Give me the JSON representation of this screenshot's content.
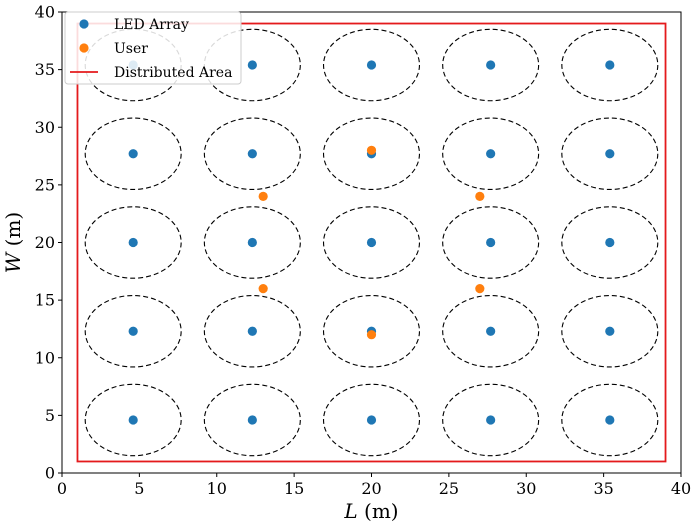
{
  "chart_data": {
    "type": "scatter",
    "title": "",
    "xlabel_var": "L",
    "xlabel_unit": "(m)",
    "ylabel_var": "W",
    "ylabel_unit": "(m)",
    "xlim": [
      0,
      40
    ],
    "ylim": [
      0,
      40
    ],
    "xticks": [
      0,
      5,
      10,
      15,
      20,
      25,
      30,
      35,
      40
    ],
    "yticks": [
      0,
      5,
      10,
      15,
      20,
      25,
      30,
      35,
      40
    ],
    "grid": false,
    "legend_position": "top-left",
    "series": [
      {
        "name": "LED Array",
        "kind": "scatter",
        "color": "#1f77b4",
        "points": [
          [
            4.6,
            4.6
          ],
          [
            12.3,
            4.6
          ],
          [
            20.0,
            4.6
          ],
          [
            27.7,
            4.6
          ],
          [
            35.4,
            4.6
          ],
          [
            4.6,
            12.3
          ],
          [
            12.3,
            12.3
          ],
          [
            20.0,
            12.3
          ],
          [
            27.7,
            12.3
          ],
          [
            35.4,
            12.3
          ],
          [
            4.6,
            20.0
          ],
          [
            12.3,
            20.0
          ],
          [
            20.0,
            20.0
          ],
          [
            27.7,
            20.0
          ],
          [
            35.4,
            20.0
          ],
          [
            4.6,
            27.7
          ],
          [
            12.3,
            27.7
          ],
          [
            20.0,
            27.7
          ],
          [
            27.7,
            27.7
          ],
          [
            35.4,
            27.7
          ],
          [
            4.6,
            35.4
          ],
          [
            12.3,
            35.4
          ],
          [
            20.0,
            35.4
          ],
          [
            27.7,
            35.4
          ],
          [
            35.4,
            35.4
          ]
        ]
      },
      {
        "name": "User",
        "kind": "scatter",
        "color": "#ff7f0e",
        "points": [
          [
            20.0,
            28.0
          ],
          [
            13.0,
            24.0
          ],
          [
            27.0,
            24.0
          ],
          [
            13.0,
            16.0
          ],
          [
            27.0,
            16.0
          ],
          [
            20.0,
            12.0
          ]
        ]
      },
      {
        "name": "Distributed Area",
        "kind": "rectangle",
        "color": "#e41a1c",
        "x_range": [
          1,
          39
        ],
        "y_range": [
          1,
          39
        ]
      }
    ],
    "coverage_circles": {
      "style": "dashed",
      "color": "#000000",
      "radius": 3.1,
      "centers": "LED Array"
    }
  }
}
